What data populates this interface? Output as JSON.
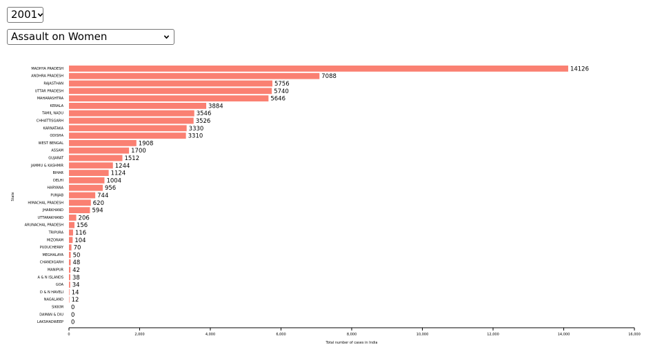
{
  "controls": {
    "year": {
      "selected": "2001"
    },
    "crime": {
      "selected": "Assault on Women"
    }
  },
  "chart_data": {
    "type": "bar",
    "orientation": "horizontal",
    "title": "",
    "xlabel": "Total number of cases in India",
    "ylabel": "State",
    "xlim": [
      0,
      16000
    ],
    "xticks": [
      0,
      2000,
      4000,
      6000,
      8000,
      10000,
      12000,
      14000,
      16000
    ],
    "xtick_labels": [
      "0",
      "2,000",
      "4,000",
      "6,000",
      "8,000",
      "10,000",
      "12,000",
      "14,000",
      "16,000"
    ],
    "bar_color": "#fa8072",
    "grid": false,
    "categories": [
      "MADHYA PRADESH",
      "ANDHRA PRADESH",
      "RAJASTHAN",
      "UTTAR PRADESH",
      "MAHARASHTRA",
      "KERALA",
      "TAMIL NADU",
      "CHHATTISGARH",
      "KARNATAKA",
      "ODISHA",
      "WEST BENGAL",
      "ASSAM",
      "GUJARAT",
      "JAMMU & KASHMIR",
      "BIHAR",
      "DELHI",
      "HARYANA",
      "PUNJAB",
      "HIMACHAL PRADESH",
      "JHARKHAND",
      "UTTARAKHAND",
      "ARUNACHAL PRADESH",
      "TRIPURA",
      "MIZORAM",
      "PUDUCHERRY",
      "MEGHALAYA",
      "CHANDIGARH",
      "MANIPUR",
      "A & N ISLANDS",
      "GOA",
      "D & N HAVELI",
      "NAGALAND",
      "SIKKIM",
      "DAMAN & DIU",
      "LAKSHADWEEP"
    ],
    "values": [
      14126,
      7088,
      5756,
      5740,
      5646,
      3884,
      3546,
      3526,
      3330,
      3310,
      1908,
      1700,
      1512,
      1244,
      1124,
      1004,
      956,
      744,
      620,
      594,
      206,
      156,
      116,
      104,
      70,
      50,
      48,
      42,
      38,
      34,
      14,
      12,
      0,
      0,
      0
    ]
  }
}
